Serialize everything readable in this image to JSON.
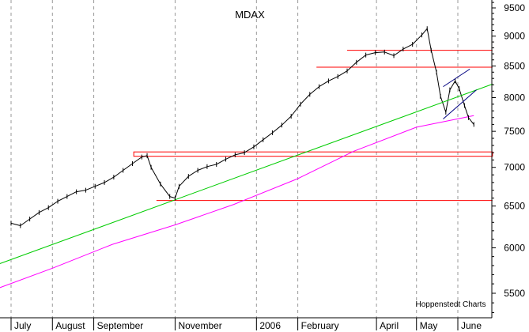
{
  "chart_data": {
    "type": "line",
    "title": "MDAX",
    "source": "Hoppenstedt Charts",
    "y_scale": "log",
    "ylim": [
      5200,
      9650
    ],
    "y_ticks": [
      {
        "value": 9500,
        "label": "9500"
      },
      {
        "value": 9000,
        "label": "9000"
      },
      {
        "value": 8500,
        "label": "8500"
      },
      {
        "value": 8000,
        "label": "8000"
      },
      {
        "value": 7500,
        "label": "7500"
      },
      {
        "value": 7000,
        "label": "7000"
      },
      {
        "value": 6500,
        "label": "6500"
      },
      {
        "value": 6000,
        "label": "6000"
      },
      {
        "value": 5500,
        "label": "5500"
      }
    ],
    "x_ticks": [
      "July",
      "August",
      "September",
      "November",
      "2006",
      "February",
      "April",
      "May",
      "June"
    ],
    "grid": "vertical dashed",
    "series": [
      {
        "kind": "price",
        "color": "#000000",
        "points": [
          [
            "2005-07-01",
            6290
          ],
          [
            "2005-07-08",
            6260
          ],
          [
            "2005-07-15",
            6340
          ],
          [
            "2005-07-22",
            6420
          ],
          [
            "2005-07-29",
            6480
          ],
          [
            "2005-08-05",
            6560
          ],
          [
            "2005-08-12",
            6620
          ],
          [
            "2005-08-19",
            6680
          ],
          [
            "2005-08-26",
            6700
          ],
          [
            "2005-09-02",
            6750
          ],
          [
            "2005-09-09",
            6800
          ],
          [
            "2005-09-16",
            6870
          ],
          [
            "2005-09-23",
            6960
          ],
          [
            "2005-09-30",
            7050
          ],
          [
            "2005-10-07",
            7140
          ],
          [
            "2005-10-11",
            7160
          ],
          [
            "2005-10-14",
            7000
          ],
          [
            "2005-10-21",
            6780
          ],
          [
            "2005-10-28",
            6620
          ],
          [
            "2005-11-01",
            6600
          ],
          [
            "2005-11-04",
            6750
          ],
          [
            "2005-11-11",
            6880
          ],
          [
            "2005-11-18",
            6960
          ],
          [
            "2005-11-25",
            7010
          ],
          [
            "2005-12-02",
            7040
          ],
          [
            "2005-12-09",
            7110
          ],
          [
            "2005-12-16",
            7170
          ],
          [
            "2005-12-23",
            7200
          ],
          [
            "2005-12-30",
            7280
          ],
          [
            "2006-01-06",
            7380
          ],
          [
            "2006-01-13",
            7480
          ],
          [
            "2006-01-20",
            7590
          ],
          [
            "2006-01-27",
            7720
          ],
          [
            "2006-02-03",
            7900
          ],
          [
            "2006-02-10",
            8050
          ],
          [
            "2006-02-17",
            8170
          ],
          [
            "2006-02-24",
            8260
          ],
          [
            "2006-03-03",
            8330
          ],
          [
            "2006-03-10",
            8420
          ],
          [
            "2006-03-17",
            8560
          ],
          [
            "2006-03-24",
            8680
          ],
          [
            "2006-03-31",
            8720
          ],
          [
            "2006-04-07",
            8730
          ],
          [
            "2006-04-14",
            8670
          ],
          [
            "2006-04-21",
            8780
          ],
          [
            "2006-04-28",
            8860
          ],
          [
            "2006-05-05",
            9020
          ],
          [
            "2006-05-09",
            9130
          ],
          [
            "2006-05-12",
            8760
          ],
          [
            "2006-05-16",
            8400
          ],
          [
            "2006-05-19",
            8020
          ],
          [
            "2006-05-23",
            7780
          ],
          [
            "2006-05-26",
            8120
          ],
          [
            "2006-05-30",
            8260
          ],
          [
            "2006-06-02",
            8140
          ],
          [
            "2006-06-06",
            7880
          ],
          [
            "2006-06-09",
            7700
          ],
          [
            "2006-06-13",
            7600
          ]
        ]
      },
      {
        "kind": "moving-average",
        "color": "#ff00ff",
        "points": [
          [
            "2005-06-15",
            5520
          ],
          [
            "2005-08-01",
            5770
          ],
          [
            "2005-09-15",
            6040
          ],
          [
            "2005-11-01",
            6270
          ],
          [
            "2005-12-15",
            6520
          ],
          [
            "2006-02-01",
            6850
          ],
          [
            "2006-03-15",
            7220
          ],
          [
            "2006-05-01",
            7560
          ],
          [
            "2006-06-13",
            7730
          ]
        ]
      },
      {
        "kind": "trendline",
        "color": "#00cc00",
        "points": [
          [
            "2005-06-15",
            5780
          ],
          [
            "2006-06-27",
            8210
          ]
        ]
      }
    ],
    "horizontal_levels": [
      {
        "value": 8760,
        "x_from": "2006-03-10",
        "x_to": "2006-06-27",
        "color": "#ff0000"
      },
      {
        "value": 8480,
        "x_from": "2006-02-15",
        "x_to": "2006-06-27",
        "color": "#ff0000"
      },
      {
        "value": 6570,
        "x_from": "2005-10-18",
        "x_to": "2006-06-27",
        "color": "#ff0000"
      }
    ],
    "horizontal_bands": [
      {
        "low": 7150,
        "high": 7210,
        "x_from": "2005-10-01",
        "x_to": "2006-06-27",
        "color": "#ff0000"
      }
    ],
    "channel_lines": [
      {
        "points": [
          [
            "2006-05-21",
            8170
          ],
          [
            "2006-06-10",
            8450
          ]
        ],
        "color": "#000080"
      },
      {
        "points": [
          [
            "2006-05-21",
            7680
          ],
          [
            "2006-06-15",
            8120
          ]
        ],
        "color": "#000080"
      }
    ]
  }
}
